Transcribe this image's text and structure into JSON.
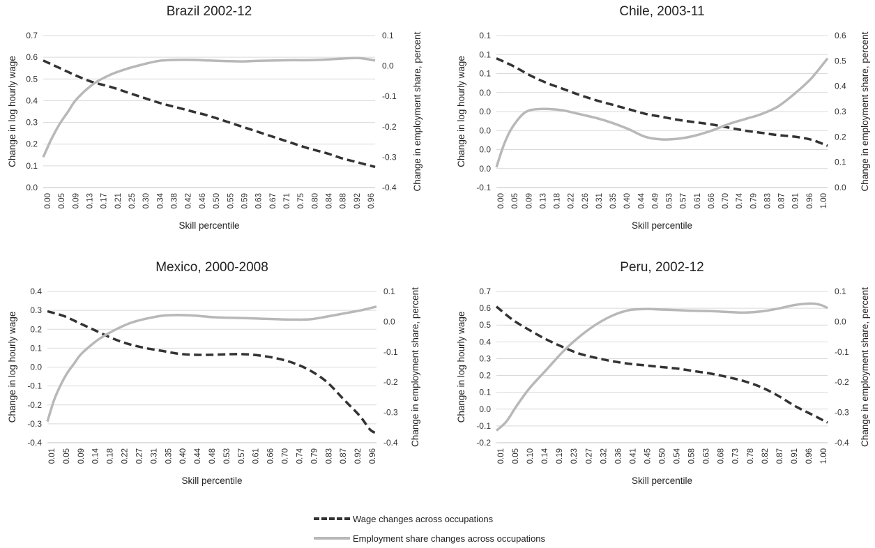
{
  "legend": {
    "wage_label": "Wage changes across occupations",
    "emp_label": "Employment share changes across occupations"
  },
  "colors": {
    "wage": "#333333",
    "employment": "#b8b8b8",
    "grid": "#d9d9d9",
    "axis_text": "#333333"
  },
  "chart_data": [
    {
      "type": "line",
      "title": "Brazil 2002-12",
      "xlabel": "Skill percentile",
      "ylabel": "Change in log hourly wage",
      "y2label": "Change in employment share, percent",
      "xlim": [
        0,
        1
      ],
      "ylim": [
        0,
        0.7
      ],
      "y_ticks": [
        "0.0",
        "0.1",
        "0.2",
        "0.3",
        "0.4",
        "0.5",
        "0.6",
        "0.7"
      ],
      "y2lim": [
        -0.4,
        0.1
      ],
      "y2_ticks": [
        "-0.4",
        "-0.3",
        "-0.2",
        "-0.1",
        "0.0",
        "0.1"
      ],
      "x_ticks": [
        "0.00",
        "0.05",
        "0.09",
        "0.13",
        "0.17",
        "0.21",
        "0.25",
        "0.30",
        "0.34",
        "0.38",
        "0.42",
        "0.46",
        "0.50",
        "0.55",
        "0.59",
        "0.63",
        "0.67",
        "0.71",
        "0.75",
        "0.80",
        "0.84",
        "0.88",
        "0.92",
        "0.96"
      ],
      "grid": true,
      "series": [
        {
          "name": "Wage changes across occupations",
          "axis": "left",
          "style": "dashed",
          "x": [
            0,
            0.05,
            0.1,
            0.15,
            0.2,
            0.25,
            0.3,
            0.35,
            0.4,
            0.45,
            0.5,
            0.55,
            0.6,
            0.65,
            0.7,
            0.75,
            0.8,
            0.85,
            0.9,
            0.95,
            1.0
          ],
          "values": [
            0.585,
            0.55,
            0.515,
            0.485,
            0.465,
            0.44,
            0.415,
            0.39,
            0.37,
            0.35,
            0.33,
            0.305,
            0.28,
            0.255,
            0.23,
            0.205,
            0.18,
            0.16,
            0.135,
            0.115,
            0.095
          ]
        },
        {
          "name": "Employment share changes across occupations",
          "axis": "right",
          "style": "solid",
          "x": [
            0,
            0.025,
            0.05,
            0.075,
            0.1,
            0.15,
            0.2,
            0.25,
            0.3,
            0.35,
            0.4,
            0.45,
            0.5,
            0.55,
            0.6,
            0.65,
            0.7,
            0.75,
            0.8,
            0.85,
            0.9,
            0.95,
            1.0
          ],
          "values": [
            -0.3,
            -0.24,
            -0.19,
            -0.15,
            -0.11,
            -0.06,
            -0.03,
            -0.01,
            0.005,
            0.017,
            0.02,
            0.02,
            0.018,
            0.016,
            0.015,
            0.017,
            0.018,
            0.019,
            0.019,
            0.021,
            0.024,
            0.026,
            0.018
          ]
        }
      ]
    },
    {
      "type": "line",
      "title": "Chile, 2003-11",
      "xlabel": "Skill percentile",
      "ylabel": "Change in log hourly wage",
      "y2label": "Change in employment share, percent",
      "xlim": [
        0,
        1
      ],
      "ylim": [
        -0.1,
        0.1
      ],
      "y_ticks": [
        "-0.1",
        "0.0",
        "0.0",
        "0.0",
        "0.0",
        "0.0",
        "0.1",
        "0.1",
        "0.1"
      ],
      "y2lim": [
        0,
        0.6
      ],
      "y2_ticks": [
        "0.0",
        "0.1",
        "0.2",
        "0.3",
        "0.4",
        "0.5",
        "0.6"
      ],
      "x_ticks": [
        "0.00",
        "0.05",
        "0.09",
        "0.13",
        "0.18",
        "0.22",
        "0.26",
        "0.31",
        "0.35",
        "0.40",
        "0.44",
        "0.49",
        "0.53",
        "0.57",
        "0.61",
        "0.66",
        "0.70",
        "0.74",
        "0.79",
        "0.83",
        "0.87",
        "0.91",
        "0.96",
        "1.00"
      ],
      "grid": true,
      "series": [
        {
          "name": "Wage changes across occupations",
          "axis": "left",
          "style": "dashed",
          "x": [
            0,
            0.05,
            0.1,
            0.15,
            0.2,
            0.25,
            0.3,
            0.35,
            0.4,
            0.45,
            0.5,
            0.55,
            0.6,
            0.65,
            0.7,
            0.75,
            0.8,
            0.85,
            0.9,
            0.95,
            1.0
          ],
          "values": [
            0.07,
            0.06,
            0.048,
            0.038,
            0.03,
            0.022,
            0.015,
            0.009,
            0.003,
            -0.003,
            -0.007,
            -0.011,
            -0.014,
            -0.017,
            -0.021,
            -0.025,
            -0.028,
            -0.031,
            -0.033,
            -0.037,
            -0.045
          ]
        },
        {
          "name": "Employment share changes across occupations",
          "axis": "right",
          "style": "solid",
          "x": [
            0,
            0.02,
            0.04,
            0.06,
            0.08,
            0.1,
            0.13,
            0.16,
            0.2,
            0.25,
            0.3,
            0.35,
            0.4,
            0.45,
            0.5,
            0.55,
            0.6,
            0.65,
            0.7,
            0.75,
            0.8,
            0.85,
            0.9,
            0.95,
            1.0
          ],
          "values": [
            0.08,
            0.16,
            0.22,
            0.26,
            0.29,
            0.305,
            0.31,
            0.31,
            0.305,
            0.29,
            0.275,
            0.255,
            0.23,
            0.2,
            0.19,
            0.193,
            0.205,
            0.225,
            0.25,
            0.27,
            0.29,
            0.32,
            0.37,
            0.43,
            0.51
          ]
        }
      ]
    },
    {
      "type": "line",
      "title": "Mexico, 2000-2008",
      "xlabel": "Skill percentile",
      "ylabel": "Change in log hourly wage",
      "y2label": "Change in employment share, percent",
      "xlim": [
        0,
        1
      ],
      "ylim": [
        -0.4,
        0.4
      ],
      "y_ticks": [
        "-0.4",
        "-0.3",
        "-0.2",
        "-0.1",
        "0.0",
        "0.1",
        "0.2",
        "0.3",
        "0.4"
      ],
      "y2lim": [
        -0.4,
        0.1
      ],
      "y2_ticks": [
        "-0.4",
        "-0.3",
        "-0.2",
        "-0.1",
        "0.0",
        "0.1"
      ],
      "x_ticks": [
        "0.01",
        "0.05",
        "0.09",
        "0.14",
        "0.18",
        "0.22",
        "0.27",
        "0.31",
        "0.35",
        "0.40",
        "0.44",
        "0.48",
        "0.53",
        "0.57",
        "0.61",
        "0.66",
        "0.70",
        "0.74",
        "0.79",
        "0.83",
        "0.87",
        "0.92",
        "0.96"
      ],
      "grid": true,
      "series": [
        {
          "name": "Wage changes across occupations",
          "axis": "left",
          "style": "dashed",
          "x": [
            0,
            0.05,
            0.1,
            0.15,
            0.2,
            0.25,
            0.3,
            0.35,
            0.4,
            0.45,
            0.5,
            0.55,
            0.6,
            0.65,
            0.7,
            0.75,
            0.8,
            0.85,
            0.9,
            0.95,
            0.98,
            1.0
          ],
          "values": [
            0.295,
            0.27,
            0.23,
            0.19,
            0.15,
            0.12,
            0.1,
            0.085,
            0.07,
            0.065,
            0.065,
            0.068,
            0.068,
            0.06,
            0.045,
            0.02,
            -0.02,
            -0.08,
            -0.17,
            -0.26,
            -0.33,
            -0.35
          ]
        },
        {
          "name": "Employment share changes across occupations",
          "axis": "right",
          "style": "solid",
          "x": [
            0,
            0.02,
            0.04,
            0.06,
            0.08,
            0.1,
            0.13,
            0.16,
            0.2,
            0.25,
            0.3,
            0.35,
            0.4,
            0.45,
            0.5,
            0.55,
            0.6,
            0.65,
            0.7,
            0.75,
            0.8,
            0.85,
            0.9,
            0.95,
            1.0
          ],
          "values": [
            -0.33,
            -0.26,
            -0.21,
            -0.17,
            -0.14,
            -0.11,
            -0.08,
            -0.055,
            -0.03,
            -0.005,
            0.01,
            0.02,
            0.022,
            0.02,
            0.015,
            0.013,
            0.012,
            0.01,
            0.008,
            0.007,
            0.008,
            0.017,
            0.027,
            0.037,
            0.05
          ]
        }
      ]
    },
    {
      "type": "line",
      "title": "Peru, 2002-12",
      "xlabel": "Skill percentile",
      "ylabel": "Change in log hourly wage",
      "y2label": "Change in employment share, percent",
      "xlim": [
        0,
        1
      ],
      "ylim": [
        -0.2,
        0.7
      ],
      "y_ticks": [
        "-0.2",
        "-0.1",
        "0.0",
        "0.1",
        "0.2",
        "0.3",
        "0.4",
        "0.5",
        "0.6",
        "0.7"
      ],
      "y2lim": [
        -0.4,
        0.1
      ],
      "y2_ticks": [
        "-0.4",
        "-0.3",
        "-0.2",
        "-0.1",
        "0.0",
        "0.1"
      ],
      "x_ticks": [
        "0.01",
        "0.05",
        "0.10",
        "0.14",
        "0.19",
        "0.23",
        "0.27",
        "0.32",
        "0.36",
        "0.41",
        "0.45",
        "0.50",
        "0.54",
        "0.58",
        "0.63",
        "0.68",
        "0.73",
        "0.78",
        "0.82",
        "0.87",
        "0.91",
        "0.96",
        "1.00"
      ],
      "grid": true,
      "series": [
        {
          "name": "Wage changes across occupations",
          "axis": "left",
          "style": "dashed",
          "x": [
            0,
            0.05,
            0.1,
            0.15,
            0.2,
            0.25,
            0.3,
            0.35,
            0.4,
            0.45,
            0.5,
            0.55,
            0.6,
            0.65,
            0.7,
            0.75,
            0.8,
            0.85,
            0.9,
            0.95,
            1.0
          ],
          "values": [
            0.61,
            0.53,
            0.47,
            0.415,
            0.37,
            0.33,
            0.305,
            0.285,
            0.27,
            0.26,
            0.25,
            0.24,
            0.225,
            0.21,
            0.19,
            0.165,
            0.13,
            0.08,
            0.02,
            -0.03,
            -0.08
          ]
        },
        {
          "name": "Employment share changes across occupations",
          "axis": "right",
          "style": "solid",
          "x": [
            0,
            0.03,
            0.06,
            0.1,
            0.15,
            0.2,
            0.25,
            0.3,
            0.35,
            0.4,
            0.45,
            0.5,
            0.55,
            0.6,
            0.65,
            0.7,
            0.75,
            0.8,
            0.85,
            0.9,
            0.95,
            0.98,
            1.0
          ],
          "values": [
            -0.36,
            -0.33,
            -0.28,
            -0.22,
            -0.16,
            -0.1,
            -0.05,
            -0.01,
            0.02,
            0.038,
            0.042,
            0.04,
            0.038,
            0.036,
            0.035,
            0.032,
            0.03,
            0.034,
            0.043,
            0.055,
            0.06,
            0.055,
            0.045
          ]
        }
      ]
    }
  ]
}
